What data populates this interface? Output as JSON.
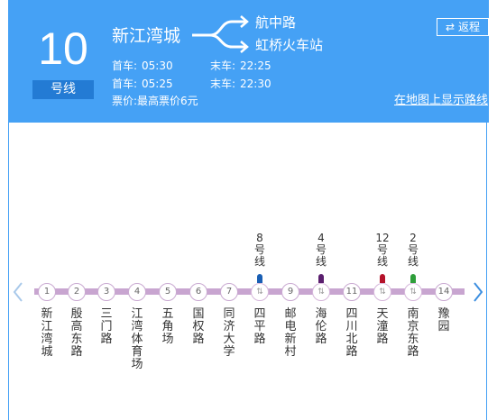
{
  "header": {
    "line_number": "10",
    "line_suffix": "号线",
    "start_station": "新江湾城",
    "end_station_a": "航中路",
    "end_station_b": "虹桥火车站",
    "times": [
      {
        "first_label": "首车:",
        "first": "05:30",
        "last_label": "末车:",
        "last": "22:25"
      },
      {
        "first_label": "首车:",
        "first": "05:25",
        "last_label": "末车:",
        "last": "22:30"
      }
    ],
    "fare": "票价:最高票价6元",
    "return_icon": "⇄",
    "return_label": "返程",
    "map_link": "在地图上显示路线"
  },
  "colors": {
    "header_bg": "#45a1f5",
    "track": "#c8a5d0",
    "line8": "#1a5fb4",
    "line4": "#5a1e6e",
    "line12": "#b5122a",
    "line2": "#2e9e3a"
  },
  "stations": [
    {
      "num": "1",
      "name": "新江湾城"
    },
    {
      "num": "2",
      "name": "殷高东路"
    },
    {
      "num": "3",
      "name": "三门路"
    },
    {
      "num": "4",
      "name": "江湾体育场"
    },
    {
      "num": "5",
      "name": "五角场"
    },
    {
      "num": "6",
      "name": "国权路"
    },
    {
      "num": "7",
      "name": "同济大学"
    },
    {
      "num": "⇅",
      "name": "四平路"
    },
    {
      "num": "9",
      "name": "邮电新村"
    },
    {
      "num": "⇅",
      "name": "海伦路"
    },
    {
      "num": "11",
      "name": "四川北路"
    },
    {
      "num": "⇅",
      "name": "天潼路"
    },
    {
      "num": "⇅",
      "name": "南京东路"
    },
    {
      "num": "14",
      "name": "豫园"
    }
  ],
  "transfers": [
    {
      "line": "8",
      "text": "号线"
    },
    {
      "line": "4",
      "text": "号线"
    },
    {
      "line": "12",
      "text": "号线"
    },
    {
      "line": "2",
      "text": "号线"
    }
  ]
}
